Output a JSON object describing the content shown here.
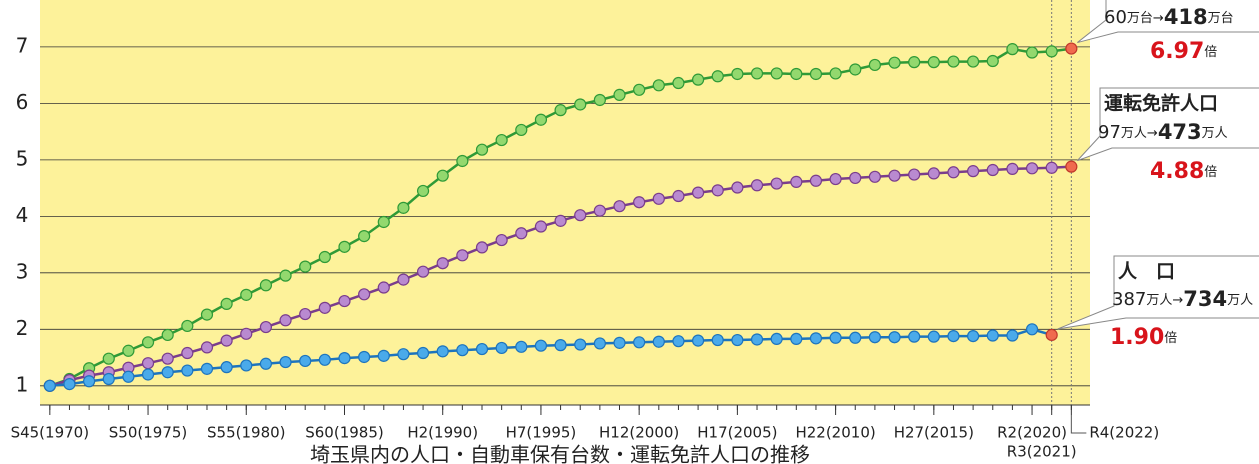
{
  "chart_data": {
    "type": "line",
    "title": "埼玉県内の人口・自動車保有台数・運転免許人口の推移",
    "x": [
      1970,
      1971,
      1972,
      1973,
      1974,
      1975,
      1976,
      1977,
      1978,
      1979,
      1980,
      1981,
      1982,
      1983,
      1984,
      1985,
      1986,
      1987,
      1988,
      1989,
      1990,
      1991,
      1992,
      1993,
      1994,
      1995,
      1996,
      1997,
      1998,
      1999,
      2000,
      2001,
      2002,
      2003,
      2004,
      2005,
      2006,
      2007,
      2008,
      2009,
      2010,
      2011,
      2012,
      2013,
      2014,
      2015,
      2016,
      2017,
      2018,
      2019,
      2020,
      2021,
      2022
    ],
    "xlim": [
      1969.5,
      2022.95
    ],
    "xticks": [
      {
        "value": 1970,
        "label": "S45(1970)"
      },
      {
        "value": 1975,
        "label": "S50(1975)"
      },
      {
        "value": 1980,
        "label": "S55(1980)"
      },
      {
        "value": 1985,
        "label": "S60(1985)"
      },
      {
        "value": 1990,
        "label": "H2(1990)"
      },
      {
        "value": 1995,
        "label": "H7(1995)"
      },
      {
        "value": 2000,
        "label": "H12(2000)"
      },
      {
        "value": 2005,
        "label": "H17(2005)"
      },
      {
        "value": 2010,
        "label": "H22(2010)"
      },
      {
        "value": 2015,
        "label": "H27(2015)"
      },
      {
        "value": 2020,
        "label": "R2(2020)"
      },
      {
        "value": 2021,
        "label": "R3(2021)"
      },
      {
        "value": 2022,
        "label": "R4(2022)"
      }
    ],
    "ylim": [
      0.66,
      7.83
    ],
    "yticks": [
      1,
      2,
      3,
      4,
      5,
      6,
      7
    ],
    "grid": true,
    "background": "#fdf29a",
    "end_color": "#f06a4e",
    "series": [
      {
        "color": "#2f9a37",
        "marker_color": "#93d86e",
        "values": [
          1.0,
          1.12,
          1.31,
          1.48,
          1.62,
          1.77,
          1.9,
          2.06,
          2.26,
          2.45,
          2.61,
          2.78,
          2.95,
          3.11,
          3.28,
          3.46,
          3.65,
          3.9,
          4.15,
          4.45,
          4.72,
          4.98,
          5.18,
          5.35,
          5.53,
          5.71,
          5.88,
          5.98,
          6.06,
          6.15,
          6.24,
          6.32,
          6.36,
          6.42,
          6.48,
          6.52,
          6.53,
          6.53,
          6.52,
          6.52,
          6.53,
          6.6,
          6.68,
          6.72,
          6.73,
          6.73,
          6.74,
          6.74,
          6.75,
          6.96,
          6.9,
          6.92,
          6.97
        ],
        "annotation": {
          "from": "60",
          "from_unit": "万台→",
          "to": "418",
          "to_unit": "万台",
          "ratio": "6.97",
          "ratio_unit": "倍"
        }
      },
      {
        "color": "#7a3d8c",
        "marker_color": "#b98ad0",
        "values": [
          1.0,
          1.1,
          1.18,
          1.24,
          1.32,
          1.4,
          1.48,
          1.58,
          1.68,
          1.8,
          1.92,
          2.04,
          2.16,
          2.27,
          2.38,
          2.5,
          2.62,
          2.74,
          2.88,
          3.02,
          3.17,
          3.31,
          3.45,
          3.58,
          3.7,
          3.82,
          3.92,
          4.02,
          4.1,
          4.18,
          4.25,
          4.31,
          4.36,
          4.42,
          4.46,
          4.51,
          4.55,
          4.58,
          4.61,
          4.63,
          4.66,
          4.68,
          4.7,
          4.72,
          4.74,
          4.76,
          4.78,
          4.8,
          4.82,
          4.84,
          4.85,
          4.86,
          4.88
        ],
        "annotation": {
          "title": "運転免許人口",
          "from": "97",
          "from_unit": "万人→",
          "to": "473",
          "to_unit": "万人",
          "ratio": "4.88",
          "ratio_unit": "倍"
        }
      },
      {
        "color": "#1d74bd",
        "marker_color": "#4aaaea",
        "values": [
          1.0,
          1.03,
          1.08,
          1.12,
          1.16,
          1.2,
          1.24,
          1.27,
          1.3,
          1.33,
          1.36,
          1.39,
          1.42,
          1.44,
          1.46,
          1.49,
          1.51,
          1.53,
          1.56,
          1.58,
          1.61,
          1.63,
          1.65,
          1.67,
          1.69,
          1.71,
          1.72,
          1.73,
          1.75,
          1.76,
          1.77,
          1.78,
          1.79,
          1.8,
          1.81,
          1.81,
          1.82,
          1.83,
          1.83,
          1.84,
          1.85,
          1.85,
          1.86,
          1.86,
          1.87,
          1.87,
          1.88,
          1.88,
          1.89,
          1.89,
          2.0,
          1.9,
          null
        ],
        "annotation": {
          "title": "人　口",
          "from": "387",
          "from_unit": "万人→",
          "to": "734",
          "to_unit": "万人",
          "ratio": "1.90",
          "ratio_unit": "倍"
        }
      }
    ]
  }
}
